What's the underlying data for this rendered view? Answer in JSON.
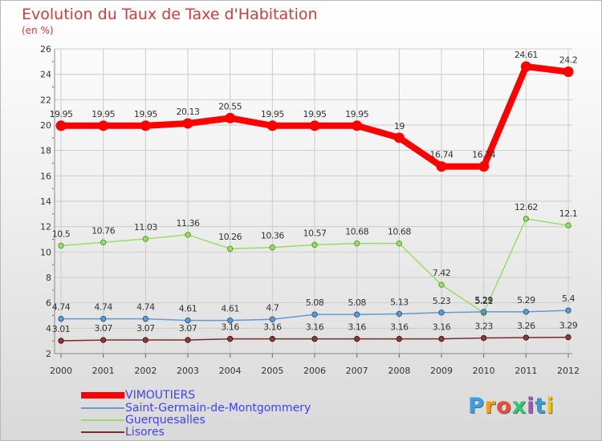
{
  "title": "Evolution du Taux de Taxe d'Habitation",
  "subtitle": "(en %)",
  "brand": {
    "letters": [
      "P",
      "r",
      "o",
      "x",
      "i",
      "t",
      "i"
    ],
    "colors": [
      "#3aa0e0",
      "#f39c12",
      "#e74c3c",
      "#2ecc71",
      "#9b59b6",
      "#3498db",
      "#f1c40f"
    ]
  },
  "chart_data": {
    "type": "line",
    "x": [
      "2000",
      "2001",
      "2002",
      "2003",
      "2004",
      "2005",
      "2006",
      "2007",
      "2008",
      "2009",
      "2010",
      "2011",
      "2012"
    ],
    "ylim": [
      2,
      26
    ],
    "yticks": [
      "2",
      "4",
      "6",
      "8",
      "10",
      "12",
      "14",
      "16",
      "18",
      "20",
      "22",
      "24",
      "26"
    ],
    "grid": true,
    "legend_position": "bottom-left",
    "series": [
      {
        "name": "VIMOUTIERS",
        "color": "#ff0000",
        "values": [
          19.95,
          19.95,
          19.95,
          20.13,
          20.55,
          19.95,
          19.95,
          19.95,
          19,
          16.74,
          16.74,
          24.61,
          24.2
        ],
        "labels": [
          "19.95",
          "19.95",
          "19.95",
          "20.13",
          "20.55",
          "19.95",
          "19.95",
          "19.95",
          "19",
          "16.74",
          "16.74",
          "24.61",
          "24.2"
        ]
      },
      {
        "name": "Saint-Germain-de-Montgommery",
        "color": "#6699cc",
        "values": [
          4.74,
          4.74,
          4.74,
          4.61,
          4.61,
          4.7,
          5.08,
          5.08,
          5.13,
          5.23,
          5.29,
          5.29,
          5.4
        ],
        "labels": [
          "4.74",
          "4.74",
          "4.74",
          "4.61",
          "4.61",
          "4.7",
          "5.08",
          "5.08",
          "5.13",
          "5.23",
          "5.29",
          "5.29",
          "5.4"
        ]
      },
      {
        "name": "Guerquesalles",
        "color": "#99dd66",
        "values": [
          10.5,
          10.76,
          11.03,
          11.36,
          10.26,
          10.36,
          10.57,
          10.68,
          10.68,
          7.42,
          5.21,
          12.62,
          12.1
        ],
        "labels": [
          "10.5",
          "10.76",
          "11.03",
          "11.36",
          "10.26",
          "10.36",
          "10.57",
          "10.68",
          "10.68",
          "7.42",
          "5.21",
          "12.62",
          "12.1"
        ]
      },
      {
        "name": "Lisores",
        "color": "#7a2c2c",
        "values": [
          3.01,
          3.07,
          3.07,
          3.07,
          3.16,
          3.16,
          3.16,
          3.16,
          3.16,
          3.16,
          3.23,
          3.26,
          3.29
        ],
        "labels": [
          "3.01",
          "3.07",
          "3.07",
          "3.07",
          "3.16",
          "3.16",
          "3.16",
          "3.16",
          "3.16",
          "3.16",
          "3.23",
          "3.26",
          "3.29"
        ]
      }
    ]
  }
}
